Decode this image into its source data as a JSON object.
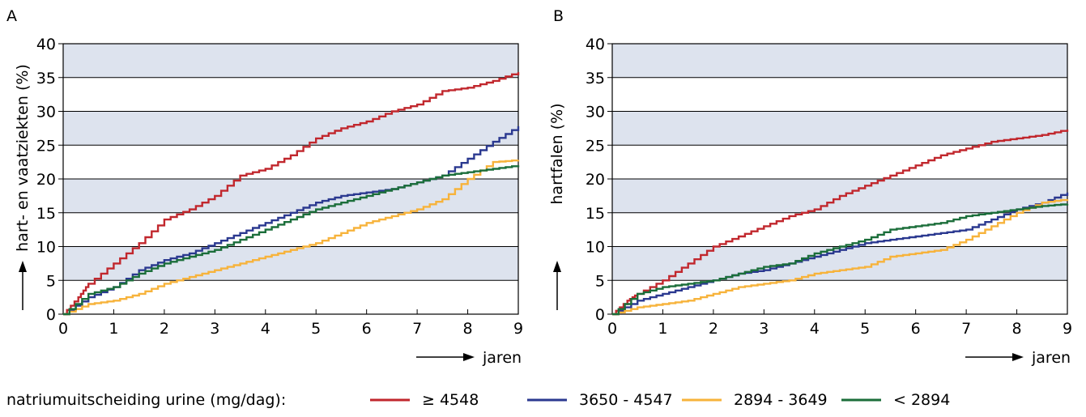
{
  "chart_data": [
    {
      "type": "line",
      "panel_label": "A",
      "ylabel": "hart- en vaatziekten (%)",
      "xlabel": "jaren",
      "xlim": [
        0,
        9
      ],
      "ylim": [
        0,
        40
      ],
      "xticks": [
        "0",
        "1",
        "2",
        "3",
        "4",
        "5",
        "6",
        "7",
        "8",
        "9"
      ],
      "yticks": [
        "0",
        "5",
        "10",
        "15",
        "20",
        "25",
        "30",
        "35",
        "40"
      ],
      "grid": true,
      "banded_background": true,
      "series": [
        {
          "name": "≥ 4548",
          "color": "#c1272d",
          "x": [
            0,
            0.3,
            0.5,
            1,
            1.5,
            2,
            2.5,
            3,
            3.5,
            4,
            4.5,
            5,
            5.5,
            6,
            6.5,
            7,
            7.5,
            8,
            8.5,
            9
          ],
          "y": [
            0,
            2.5,
            4.5,
            7.5,
            10.5,
            14,
            15.5,
            17.5,
            20.5,
            21.5,
            23.5,
            26,
            27.5,
            28.5,
            30,
            31,
            33,
            33.5,
            34.5,
            35.8
          ]
        },
        {
          "name": "3650 - 4547",
          "color": "#2b3990",
          "x": [
            0,
            0.5,
            1,
            1.5,
            2,
            2.5,
            3,
            3.5,
            4,
            4.5,
            5,
            5.5,
            6,
            6.5,
            7,
            7.5,
            8,
            8.5,
            9
          ],
          "y": [
            0,
            2.5,
            4,
            6.5,
            8,
            9,
            10.5,
            12,
            13.5,
            15,
            16.5,
            17.5,
            18,
            18.5,
            19.5,
            20.5,
            23,
            25.5,
            27.8
          ]
        },
        {
          "name": "2894 - 3649",
          "color": "#f7b33b",
          "x": [
            0,
            0.5,
            1,
            1.5,
            2,
            2.5,
            3,
            3.5,
            4,
            4.5,
            5,
            5.5,
            6,
            6.5,
            7,
            7.5,
            8,
            8.5,
            9
          ],
          "y": [
            0,
            1.5,
            2,
            3,
            4.5,
            5.5,
            6.5,
            7.5,
            8.5,
            9.5,
            10.5,
            12,
            13.5,
            14.5,
            15.5,
            17,
            20,
            22.5,
            22.8
          ]
        },
        {
          "name": "< 2894",
          "color": "#1b6e3a",
          "x": [
            0,
            0.5,
            1,
            1.5,
            2,
            2.5,
            3,
            3.5,
            4,
            4.5,
            5,
            5.5,
            6,
            6.5,
            7,
            7.5,
            8,
            8.5,
            9
          ],
          "y": [
            0,
            3,
            4,
            6,
            7.5,
            8.5,
            9.5,
            11,
            12.5,
            14,
            15.5,
            16.5,
            17.5,
            18.5,
            19.5,
            20.5,
            21,
            21.5,
            22
          ]
        }
      ]
    },
    {
      "type": "line",
      "panel_label": "B",
      "ylabel": "hartfalen (%)",
      "xlabel": "jaren",
      "xlim": [
        0,
        9
      ],
      "ylim": [
        0,
        40
      ],
      "xticks": [
        "0",
        "1",
        "2",
        "3",
        "4",
        "5",
        "6",
        "7",
        "8",
        "9"
      ],
      "yticks": [
        "0",
        "5",
        "10",
        "15",
        "20",
        "25",
        "30",
        "35",
        "40"
      ],
      "grid": true,
      "banded_background": true,
      "series": [
        {
          "name": "≥ 4548",
          "color": "#c1272d",
          "x": [
            0,
            0.3,
            0.5,
            1,
            1.5,
            2,
            2.5,
            3,
            3.5,
            4,
            4.5,
            5,
            5.5,
            6,
            6.5,
            7,
            7.5,
            8,
            8.5,
            9
          ],
          "y": [
            0,
            2,
            3,
            5,
            7.5,
            10,
            11.5,
            13,
            14.5,
            15.5,
            17.5,
            19,
            20.5,
            22,
            23.5,
            24.5,
            25.5,
            26,
            26.5,
            27.3
          ]
        },
        {
          "name": "3650 - 4547",
          "color": "#2b3990",
          "x": [
            0,
            0.5,
            1,
            1.5,
            2,
            2.5,
            3,
            3.5,
            4,
            4.5,
            5,
            5.5,
            6,
            6.5,
            7,
            7.5,
            8,
            8.5,
            9
          ],
          "y": [
            0,
            2,
            3,
            4,
            5,
            6,
            6.5,
            7.5,
            8.5,
            9.5,
            10.5,
            11,
            11.5,
            12,
            12.5,
            14,
            15.5,
            16.5,
            18
          ]
        },
        {
          "name": "2894 - 3649",
          "color": "#f7b33b",
          "x": [
            0,
            0.5,
            1,
            1.5,
            2,
            2.5,
            3,
            3.5,
            4,
            4.5,
            5,
            5.5,
            6,
            6.5,
            7,
            7.5,
            8,
            8.5,
            9
          ],
          "y": [
            0,
            1,
            1.5,
            2,
            3,
            4,
            4.5,
            5,
            6,
            6.5,
            7,
            8.5,
            9,
            9.5,
            11,
            13,
            15,
            16.5,
            17
          ]
        },
        {
          "name": "< 2894",
          "color": "#1b6e3a",
          "x": [
            0,
            0.5,
            1,
            1.5,
            2,
            2.5,
            3,
            3.5,
            4,
            4.5,
            5,
            5.5,
            6,
            6.5,
            7,
            7.5,
            8,
            8.5,
            9
          ],
          "y": [
            0,
            3,
            4,
            4.5,
            5,
            6,
            7,
            7.5,
            9,
            10,
            11,
            12.5,
            13,
            13.5,
            14.5,
            15,
            15.5,
            16,
            16.3
          ]
        }
      ]
    }
  ],
  "legend": {
    "title": "natriumuitscheiding urine (mg/dag):",
    "items": [
      {
        "label": "≥ 4548",
        "color": "#c1272d"
      },
      {
        "label": "3650 - 4547",
        "color": "#2b3990"
      },
      {
        "label": "2894 - 3649",
        "color": "#f7b33b"
      },
      {
        "label": "< 2894",
        "color": "#1b6e3a"
      }
    ]
  },
  "colors": {
    "band": "#dde3ee",
    "axis": "#000000"
  }
}
